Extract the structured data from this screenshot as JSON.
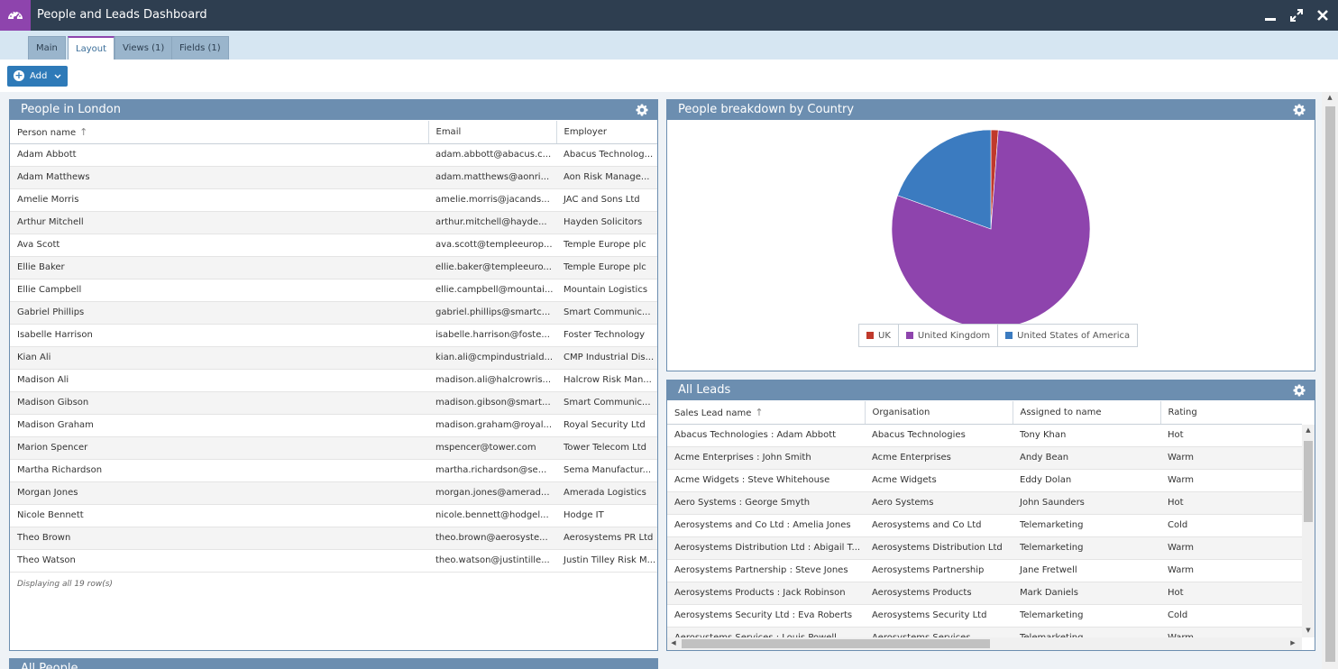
{
  "window": {
    "title": "People and Leads Dashboard"
  },
  "tabs": [
    {
      "label": "Main"
    },
    {
      "label": "Layout"
    },
    {
      "label": "Views (1)"
    },
    {
      "label": "Fields (1)"
    }
  ],
  "toolbar": {
    "add_label": "Add"
  },
  "colors": {
    "titlebar": "#2e3e50",
    "accent": "#8e44ad",
    "panel_header": "#6c8eb0",
    "button": "#2e7ab8"
  },
  "people_panel": {
    "title": "People in London",
    "columns": [
      "Person name",
      "Email",
      "Employer"
    ],
    "rows": [
      [
        "Adam Abbott",
        "adam.abbott@abacus.c...",
        "Abacus Technolog..."
      ],
      [
        "Adam Matthews",
        "adam.matthews@aonri...",
        "Aon Risk Manage..."
      ],
      [
        "Amelie Morris",
        "amelie.morris@jacands...",
        "JAC and Sons Ltd"
      ],
      [
        "Arthur Mitchell",
        "arthur.mitchell@hayde...",
        "Hayden Solicitors"
      ],
      [
        "Ava Scott",
        "ava.scott@templeeurop...",
        "Temple Europe plc"
      ],
      [
        "Ellie Baker",
        "ellie.baker@templeeuro...",
        "Temple Europe plc"
      ],
      [
        "Ellie Campbell",
        "ellie.campbell@mountai...",
        "Mountain Logistics"
      ],
      [
        "Gabriel Phillips",
        "gabriel.phillips@smartc...",
        "Smart Communic..."
      ],
      [
        "Isabelle Harrison",
        "isabelle.harrison@foste...",
        "Foster Technology"
      ],
      [
        "Kian Ali",
        "kian.ali@cmpindustriald...",
        "CMP Industrial Dis..."
      ],
      [
        "Madison Ali",
        "madison.ali@halcrowris...",
        "Halcrow Risk Man..."
      ],
      [
        "Madison Gibson",
        "madison.gibson@smart...",
        "Smart Communic..."
      ],
      [
        "Madison Graham",
        "madison.graham@royal...",
        "Royal Security Ltd"
      ],
      [
        "Marion Spencer",
        "mspencer@tower.com",
        "Tower Telecom Ltd"
      ],
      [
        "Martha Richardson",
        "martha.richardson@se...",
        "Sema Manufactur..."
      ],
      [
        "Morgan Jones",
        "morgan.jones@amerad...",
        "Amerada Logistics"
      ],
      [
        "Nicole Bennett",
        "nicole.bennett@hodgel...",
        "Hodge IT"
      ],
      [
        "Theo Brown",
        "theo.brown@aerosyste...",
        "Aerosystems PR Ltd"
      ],
      [
        "Theo Watson",
        "theo.watson@justintille...",
        "Justin Tilley Risk M..."
      ]
    ],
    "footer": "Displaying all 19 row(s)"
  },
  "chart_panel": {
    "title": "People breakdown by Country"
  },
  "chart_data": {
    "type": "pie",
    "title": "",
    "categories": [
      "UK",
      "United Kingdom",
      "United States of America"
    ],
    "values": [
      1.2,
      79.3,
      19.5
    ],
    "colors": [
      "#c0392b",
      "#8e44ad",
      "#3b7bc0"
    ],
    "legend_position": "bottom"
  },
  "leads_panel": {
    "title": "All Leads",
    "columns": [
      "Sales Lead name",
      "Organisation",
      "Assigned to name",
      "Rating"
    ],
    "rows": [
      [
        "Abacus Technologies : Adam Abbott",
        "Abacus Technologies",
        "Tony Khan",
        "Hot"
      ],
      [
        "Acme Enterprises : John Smith",
        "Acme Enterprises",
        "Andy Bean",
        "Warm"
      ],
      [
        "Acme Widgets : Steve Whitehouse",
        "Acme Widgets",
        "Eddy Dolan",
        "Warm"
      ],
      [
        "Aero Systems : George Smyth",
        "Aero Systems",
        "John Saunders",
        "Hot"
      ],
      [
        "Aerosystems and Co Ltd : Amelia Jones",
        "Aerosystems and Co Ltd",
        "Telemarketing",
        "Cold"
      ],
      [
        "Aerosystems Distribution Ltd : Abigail T...",
        "Aerosystems Distribution Ltd",
        "Telemarketing",
        "Warm"
      ],
      [
        "Aerosystems Partnership : Steve Jones",
        "Aerosystems Partnership",
        "Jane Fretwell",
        "Warm"
      ],
      [
        "Aerosystems Products : Jack Robinson",
        "Aerosystems Products",
        "Mark Daniels",
        "Hot"
      ],
      [
        "Aerosystems Security Ltd : Eva Roberts",
        "Aerosystems Security Ltd",
        "Telemarketing",
        "Cold"
      ],
      [
        "Aerosystems Services : Louis Powell",
        "Aerosystems Services",
        "Telemarketing",
        "Warm"
      ]
    ]
  },
  "bottom_panel": {
    "title": "All People"
  }
}
